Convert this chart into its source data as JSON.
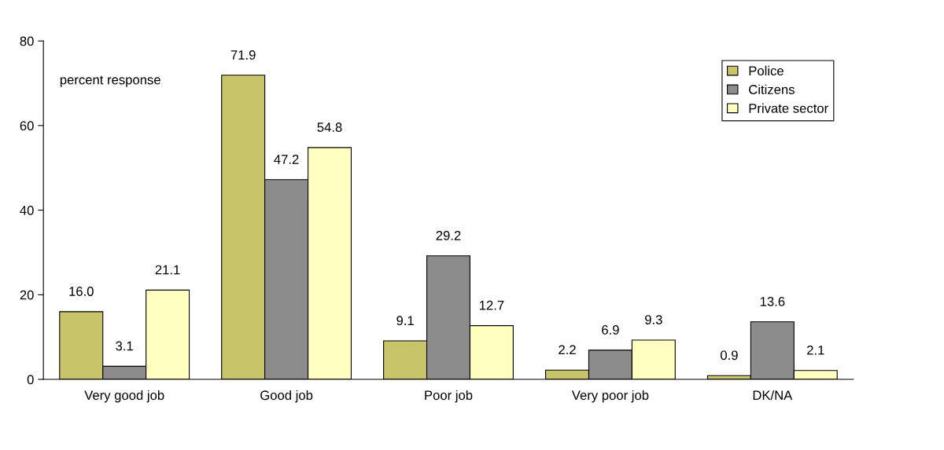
{
  "chart_data": {
    "type": "bar",
    "categories": [
      "Very good job",
      "Good job",
      "Poor job",
      "Very poor job",
      "DK/NA"
    ],
    "series": [
      {
        "name": "Police",
        "color": "#c8c46a",
        "values": [
          16.0,
          71.9,
          9.1,
          2.2,
          0.9
        ],
        "value_labels": [
          "16.0",
          "71.9",
          "9.1",
          "2.2",
          "0.9"
        ]
      },
      {
        "name": "Citizens",
        "color": "#8c8c8c",
        "values": [
          3.1,
          47.2,
          29.2,
          6.9,
          13.6
        ],
        "value_labels": [
          "3.1",
          "47.2",
          "29.2",
          "6.9",
          "13.6"
        ]
      },
      {
        "name": "Private sector",
        "color": "#ffffc0",
        "values": [
          21.1,
          54.8,
          12.7,
          9.3,
          2.1
        ],
        "value_labels": [
          "21.1",
          "54.8",
          "12.7",
          "9.3",
          "2.1"
        ]
      }
    ],
    "annotations": [
      "percent response"
    ],
    "ylim": [
      0,
      80
    ],
    "yticks": [
      0,
      20,
      40,
      60,
      80
    ],
    "grid": false,
    "legend": "top right"
  }
}
